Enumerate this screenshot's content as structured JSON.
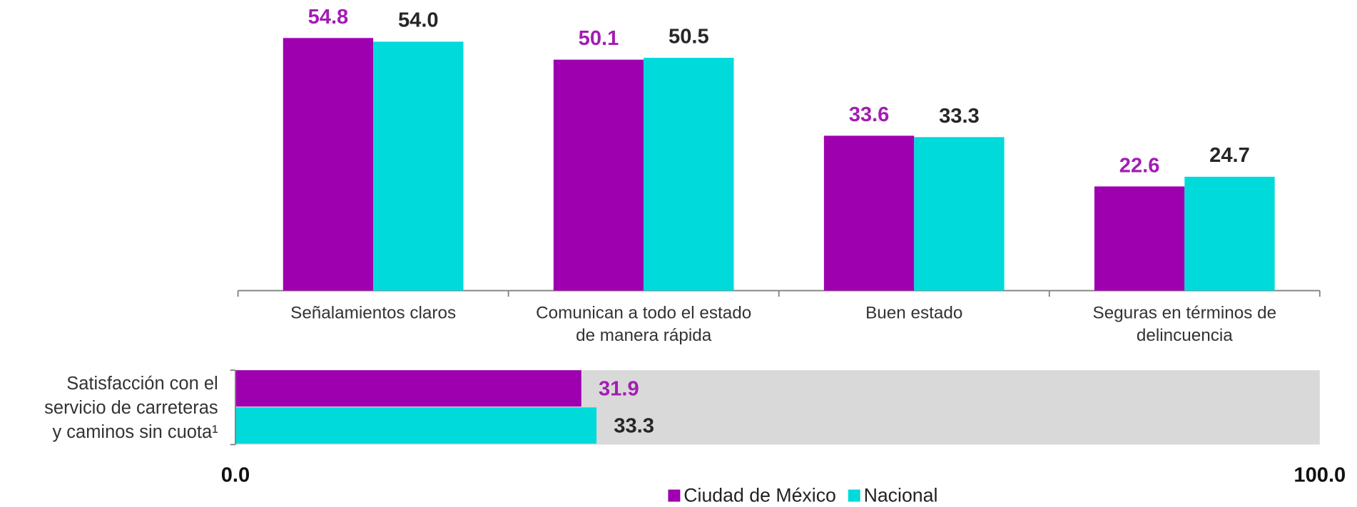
{
  "chart_data": [
    {
      "type": "bar",
      "categories": [
        "Señalamientos claros",
        "Comunican a todo el estado\nde manera rápida",
        "Buen estado",
        "Seguras en términos de\ndelincuencia"
      ],
      "series": [
        {
          "name": "Ciudad de México",
          "color": "#9e00b0",
          "label_color": "#a21db3",
          "values": [
            54.8,
            50.1,
            33.6,
            22.6
          ],
          "value_labels": [
            "54.8",
            "50.1",
            "33.6",
            "22.6"
          ]
        },
        {
          "name": "Nacional",
          "color": "#00dada",
          "label_color": "#262626",
          "values": [
            54.0,
            50.5,
            33.3,
            24.7
          ],
          "value_labels": [
            "54.0",
            "50.5",
            "33.3",
            "24.7"
          ]
        }
      ]
    },
    {
      "type": "hbar",
      "categories": [
        "Satisfacción con el\nservicio de carreteras\ny caminos sin cuota¹"
      ],
      "series": [
        {
          "name": "Ciudad de México",
          "color": "#9e00b0",
          "label_color": "#a21db3",
          "values": [
            31.9
          ],
          "value_labels": [
            "31.9"
          ]
        },
        {
          "name": "Nacional",
          "color": "#00dada",
          "label_color": "#262626",
          "values": [
            33.3
          ],
          "value_labels": [
            "33.3"
          ]
        }
      ],
      "xlim": [
        0,
        100
      ],
      "xticks": [
        {
          "value": 0,
          "label": "0.0"
        },
        {
          "value": 100,
          "label": "100.0"
        }
      ],
      "background": "#d9d9d9",
      "legend": "bottom"
    }
  ]
}
